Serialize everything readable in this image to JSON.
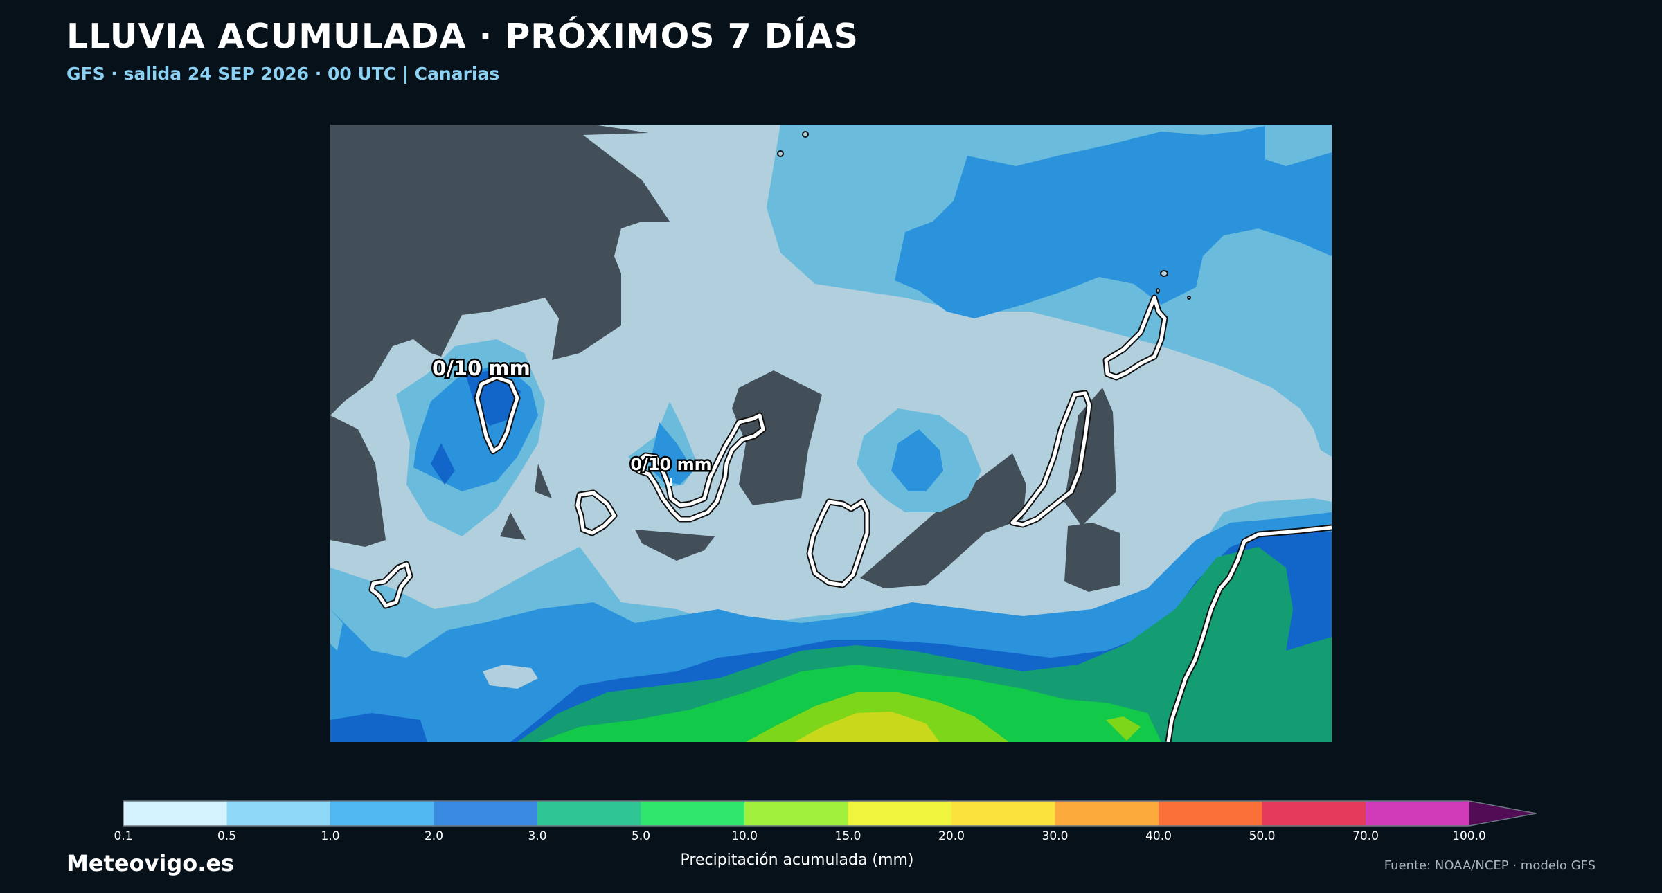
{
  "header": {
    "title": "LLUVIA ACUMULADA · PRÓXIMOS 7 DÍAS",
    "subtitle": "GFS · salida 24 SEP 2026 · 00 UTC  |  Canarias"
  },
  "map": {
    "point_labels": [
      {
        "id": "la-palma",
        "text": "0/10 mm"
      },
      {
        "id": "tenerife",
        "text": "0/10 mm"
      }
    ],
    "colors": {
      "no_data": "#434f58",
      "band_0_1": "#b1cfdd",
      "band_0_5": "#6bbbdc",
      "band_1": "#2b93db",
      "band_2": "#1366c9",
      "band_3": "#149d72",
      "band_5": "#13c949",
      "band_10": "#7ed61a",
      "band_15": "#c9d81a",
      "coast": "#ffffff"
    }
  },
  "colorbar": {
    "label": "Precipitación acumulada (mm)",
    "ticks": [
      "0.1",
      "0.5",
      "1.0",
      "2.0",
      "3.0",
      "5.0",
      "10.0",
      "15.0",
      "20.0",
      "30.0",
      "40.0",
      "50.0",
      "70.0",
      "100.0"
    ],
    "colors": [
      "#d4f3fe",
      "#8fd8f7",
      "#51b7f1",
      "#3a89e0",
      "#2fc594",
      "#30e66d",
      "#a0ef3c",
      "#eff53d",
      "#fce23d",
      "#fcaa3c",
      "#fb7039",
      "#e53b5a",
      "#d13bb9",
      "#520c55"
    ]
  },
  "footer": {
    "brand": "Meteovigo.es",
    "source": "Fuente: NOAA/NCEP · modelo GFS"
  }
}
